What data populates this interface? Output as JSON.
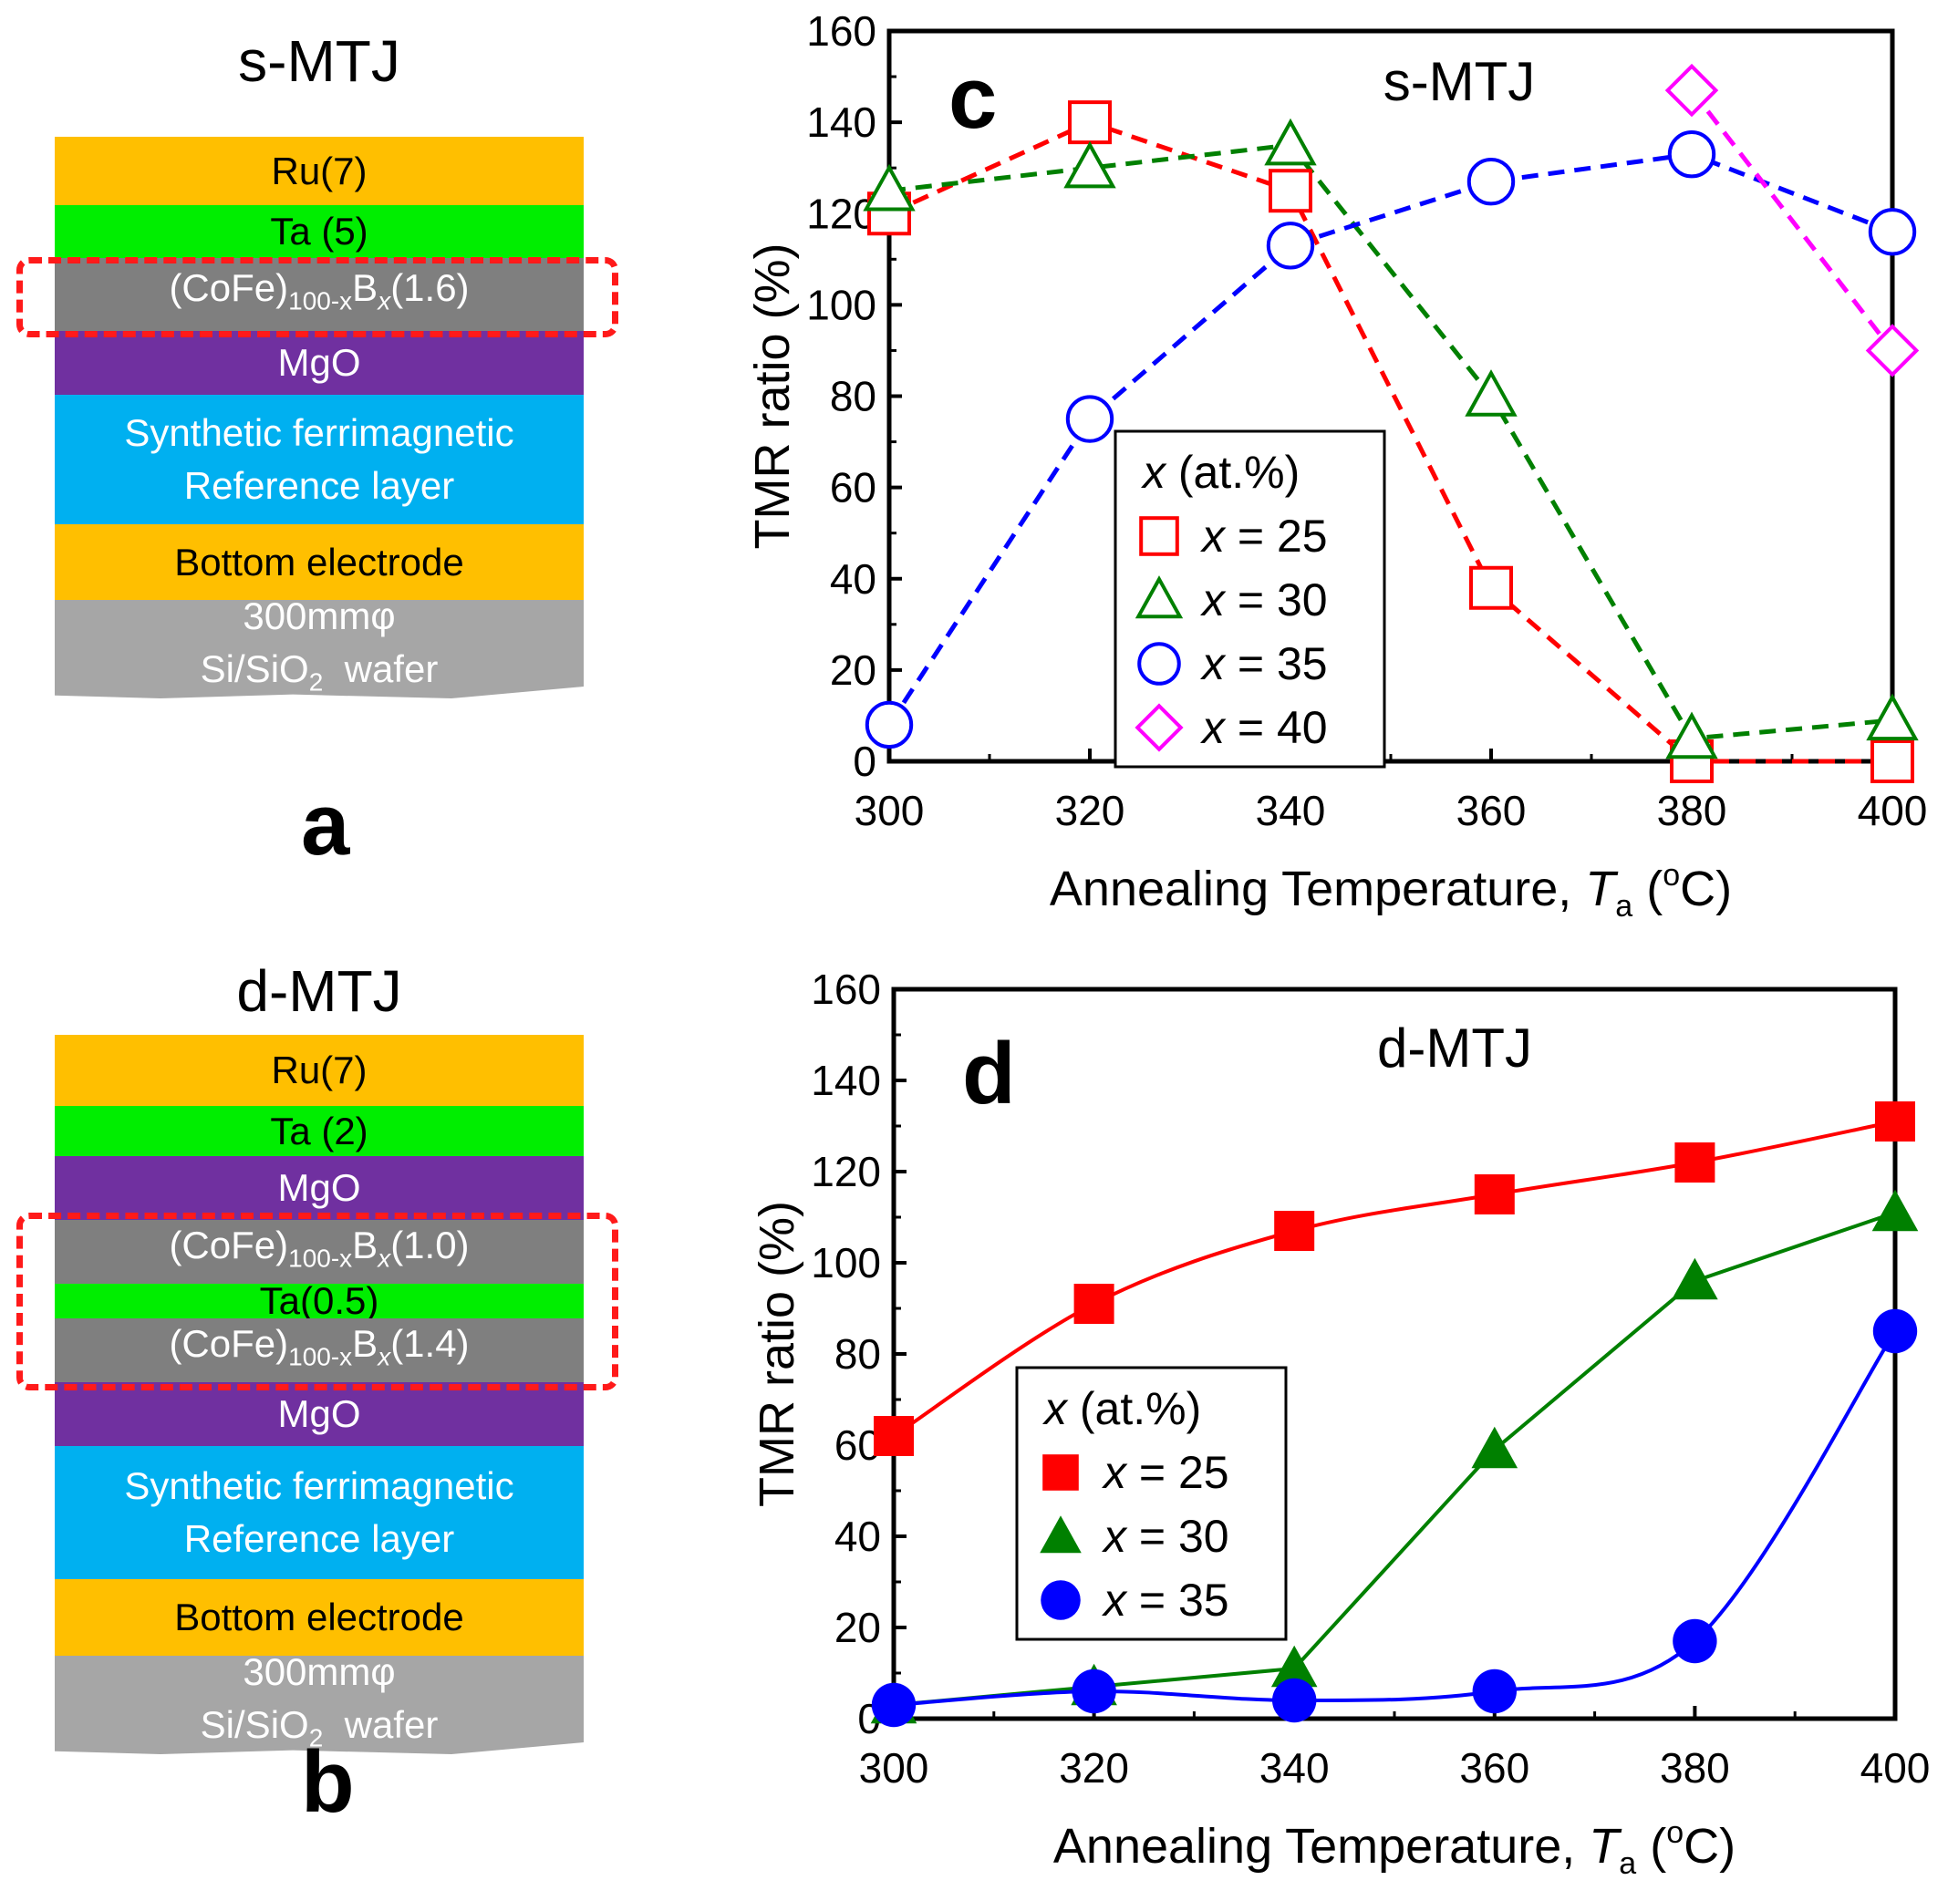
{
  "stack_a": {
    "title": "s-MTJ",
    "panel": "a",
    "layers": [
      {
        "label": "Ru(7)",
        "color": "#ffbf00"
      },
      {
        "label": "Ta (5)",
        "color": "#00ee00"
      },
      {
        "label_prefix": "(CoFe)",
        "label_sub": "100-x",
        "label_mid": "B",
        "label_sub2": "x",
        "label_suffix": "(1.6)",
        "color": "#7f7f7f"
      },
      {
        "label": "MgO",
        "color": "#7030a0"
      },
      {
        "label": "Synthetic ferrimagnetic",
        "label2": "Reference layer",
        "color": "#00b0f0"
      },
      {
        "label": "Bottom electrode",
        "color": "#ffbf00"
      },
      {
        "label": "300mmφ",
        "label2_prefix": "Si/SiO",
        "label2_sub": "2",
        "label2_suffix": "  wafer",
        "color": "#a6a6a6"
      }
    ]
  },
  "stack_b": {
    "title": "d-MTJ",
    "panel": "b",
    "layers": [
      {
        "label": "Ru(7)",
        "color": "#ffbf00"
      },
      {
        "label": "Ta (2)",
        "color": "#00ee00"
      },
      {
        "label": "MgO",
        "color": "#7030a0"
      },
      {
        "label_prefix": "(CoFe)",
        "label_sub": "100-x",
        "label_mid": "B",
        "label_sub2": "x",
        "label_suffix": "(1.0)",
        "color": "#7f7f7f"
      },
      {
        "label": "Ta(0.5)",
        "color": "#00ee00"
      },
      {
        "label_prefix": "(CoFe)",
        "label_sub": "100-x",
        "label_mid": "B",
        "label_sub2": "x",
        "label_suffix": "(1.4)",
        "color": "#7f7f7f"
      },
      {
        "label": "MgO",
        "color": "#7030a0"
      },
      {
        "label": "Synthetic ferrimagnetic",
        "label2": "Reference layer",
        "color": "#00b0f0"
      },
      {
        "label": "Bottom electrode",
        "color": "#ffbf00"
      },
      {
        "label": "300mmφ",
        "label2_prefix": "Si/SiO",
        "label2_sub": "2",
        "label2_suffix": "  wafer",
        "color": "#a6a6a6"
      }
    ]
  },
  "chart_data": [
    {
      "type": "line",
      "panel": "c",
      "title": "s-MTJ",
      "xlabel": "Annealing Temperature,  T",
      "xlabel_sub": "a",
      "xlabel_unit_open": " (",
      "xlabel_sup": "o",
      "xlabel_unit_close": "C)",
      "ylabel": "TMR ratio  (%)",
      "xlim": [
        300,
        400
      ],
      "ylim": [
        0,
        160
      ],
      "xticks": [
        300,
        320,
        340,
        360,
        380,
        400
      ],
      "yticks": [
        0,
        20,
        40,
        60,
        80,
        100,
        120,
        140,
        160
      ],
      "legend_title": "x (at.%)",
      "series": [
        {
          "name": "x = 25",
          "marker": "square",
          "filled": false,
          "dashed": true,
          "color": "#ff0000",
          "x": [
            300,
            320,
            340,
            360,
            380,
            400
          ],
          "values": [
            120,
            140,
            125,
            38,
            0,
            0
          ]
        },
        {
          "name": "x = 30",
          "marker": "triangle",
          "filled": false,
          "dashed": true,
          "color": "#008000",
          "x": [
            300,
            320,
            340,
            360,
            380,
            400
          ],
          "values": [
            125,
            130,
            135,
            80,
            5,
            9
          ]
        },
        {
          "name": "x = 35",
          "marker": "circle",
          "filled": false,
          "dashed": true,
          "color": "#0000ff",
          "x": [
            300,
            320,
            340,
            360,
            380,
            400
          ],
          "values": [
            8,
            75,
            113,
            127,
            133,
            116
          ]
        },
        {
          "name": "x = 40",
          "marker": "diamond",
          "filled": false,
          "dashed": true,
          "color": "#ff00ff",
          "x": [
            380,
            400
          ],
          "values": [
            147,
            90
          ]
        }
      ]
    },
    {
      "type": "line",
      "panel": "d",
      "title": "d-MTJ",
      "xlabel": "Annealing Temperature,  T",
      "xlabel_sub": "a",
      "xlabel_unit_open": " (",
      "xlabel_sup": "o",
      "xlabel_unit_close": "C)",
      "ylabel": "TMR ratio  (%)",
      "xlim": [
        300,
        400
      ],
      "ylim": [
        0,
        160
      ],
      "xticks": [
        300,
        320,
        340,
        360,
        380,
        400
      ],
      "yticks": [
        0,
        20,
        40,
        60,
        80,
        100,
        120,
        140,
        160
      ],
      "legend_title": "x (at.%)",
      "series": [
        {
          "name": "x = 25",
          "marker": "square",
          "filled": true,
          "dashed": false,
          "color": "#ff0000",
          "x": [
            300,
            320,
            340,
            360,
            380,
            400
          ],
          "values": [
            62,
            91,
            107,
            115,
            122,
            131
          ]
        },
        {
          "name": "x = 30",
          "marker": "triangle",
          "filled": true,
          "dashed": false,
          "color": "#008000",
          "x": [
            300,
            320,
            340,
            360,
            380,
            400
          ],
          "values": [
            3,
            7,
            11,
            59,
            96,
            111
          ]
        },
        {
          "name": "x = 35",
          "marker": "circle",
          "filled": true,
          "dashed": false,
          "color": "#0000ff",
          "x": [
            300,
            320,
            340,
            360,
            380,
            400
          ],
          "values": [
            3,
            6,
            4,
            6,
            17,
            85
          ]
        }
      ]
    }
  ]
}
